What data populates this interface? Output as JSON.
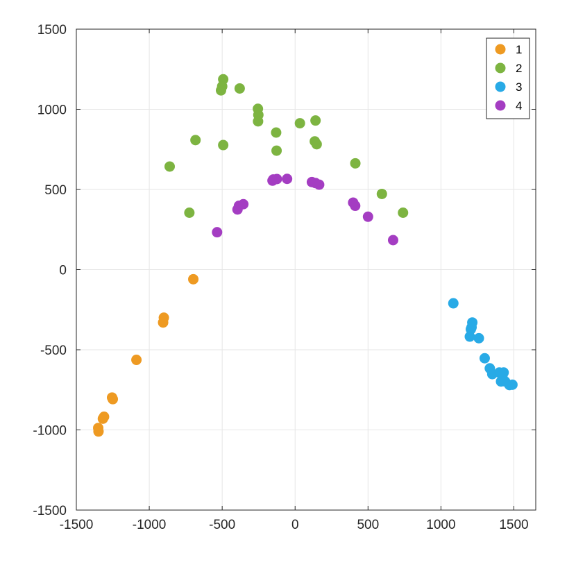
{
  "chart_data": {
    "type": "scatter",
    "xlim": [
      -1500,
      1650
    ],
    "ylim": [
      -1500,
      1500
    ],
    "xticks": [
      -1500,
      -1000,
      -500,
      0,
      500,
      1000,
      1500
    ],
    "yticks": [
      -1500,
      -1000,
      -500,
      0,
      500,
      1000,
      1500
    ],
    "xtick_labels": [
      "-1500",
      "-1000",
      "-500",
      "0",
      "500",
      "1000",
      "1500"
    ],
    "ytick_labels": [
      "-1500",
      "-1000",
      "-500",
      "0",
      "500",
      "1000",
      "1500"
    ],
    "grid": true,
    "legend_position": "top-right",
    "series": [
      {
        "name": "1",
        "color": "#EE9A22",
        "points": [
          [
            -698,
            -60
          ],
          [
            -900,
            -300
          ],
          [
            -905,
            -330
          ],
          [
            -1088,
            -563
          ],
          [
            -1255,
            -798
          ],
          [
            -1250,
            -808
          ],
          [
            -1310,
            -918
          ],
          [
            -1318,
            -930
          ],
          [
            -1350,
            -988
          ],
          [
            -1348,
            -1010
          ]
        ]
      },
      {
        "name": "2",
        "color": "#7DB441",
        "points": [
          [
            -493,
            1187
          ],
          [
            -500,
            1143
          ],
          [
            -508,
            1118
          ],
          [
            -380,
            1130
          ],
          [
            -255,
            1003
          ],
          [
            -252,
            965
          ],
          [
            -254,
            925
          ],
          [
            -130,
            855
          ],
          [
            -860,
            643
          ],
          [
            -683,
            808
          ],
          [
            -493,
            777
          ],
          [
            -127,
            742
          ],
          [
            -725,
            355
          ],
          [
            33,
            913
          ],
          [
            140,
            930
          ],
          [
            135,
            800
          ],
          [
            148,
            782
          ],
          [
            413,
            663
          ],
          [
            595,
            472
          ],
          [
            740,
            355
          ]
        ]
      },
      {
        "name": "3",
        "color": "#28AAE6",
        "points": [
          [
            1085,
            -210
          ],
          [
            1215,
            -330
          ],
          [
            1210,
            -360
          ],
          [
            1205,
            -372
          ],
          [
            1198,
            -418
          ],
          [
            1260,
            -428
          ],
          [
            1300,
            -553
          ],
          [
            1335,
            -616
          ],
          [
            1352,
            -652
          ],
          [
            1400,
            -642
          ],
          [
            1430,
            -642
          ],
          [
            1422,
            -660
          ],
          [
            1412,
            -698
          ],
          [
            1440,
            -698
          ],
          [
            1470,
            -720
          ],
          [
            1490,
            -718
          ]
        ]
      },
      {
        "name": "4",
        "color": "#A43DC2",
        "points": [
          [
            -535,
            233
          ],
          [
            -395,
            375
          ],
          [
            -385,
            398
          ],
          [
            -355,
            408
          ],
          [
            -155,
            555
          ],
          [
            -150,
            562
          ],
          [
            -125,
            565
          ],
          [
            -55,
            566
          ],
          [
            115,
            546
          ],
          [
            140,
            540
          ],
          [
            165,
            530
          ],
          [
            398,
            418
          ],
          [
            412,
            398
          ],
          [
            500,
            330
          ],
          [
            672,
            184
          ]
        ]
      }
    ]
  }
}
